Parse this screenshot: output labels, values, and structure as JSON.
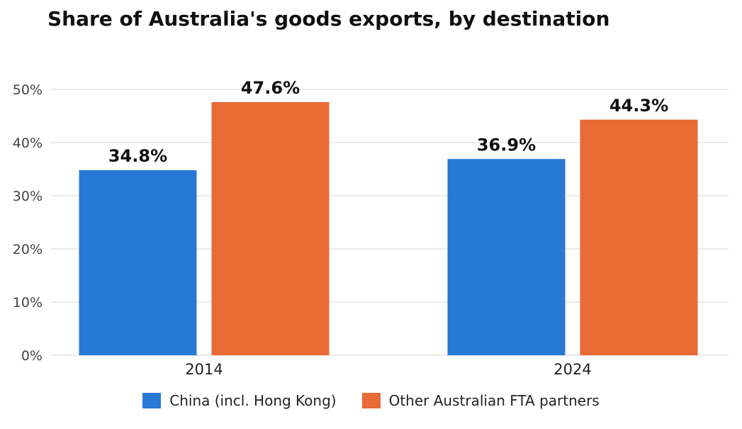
{
  "colors": {
    "china": "#2878d6",
    "fta": "#e86a35",
    "grid": "#e3e3e3",
    "axis_text": "#444444",
    "label_text": "#111111"
  },
  "chart_data": {
    "type": "bar",
    "title": "Share of Australia's goods exports, by destination",
    "categories": [
      "2014",
      "2024"
    ],
    "series": [
      {
        "name": "China (incl. Hong Kong)",
        "values": [
          34.8,
          36.9
        ],
        "labels": [
          "34.8%",
          "36.9%"
        ],
        "color": "#2878d6"
      },
      {
        "name": "Other Australian FTA partners",
        "values": [
          47.6,
          44.3
        ],
        "labels": [
          "47.6%",
          "44.3%"
        ],
        "color": "#e86a35"
      }
    ],
    "yticks": [
      0,
      10,
      20,
      30,
      40,
      50
    ],
    "ytick_labels": [
      "0%",
      "10%",
      "20%",
      "30%",
      "40%",
      "50%"
    ],
    "ylim": [
      0,
      50
    ],
    "grid": true,
    "legend_position": "bottom-center",
    "xlabel": "",
    "ylabel": ""
  }
}
